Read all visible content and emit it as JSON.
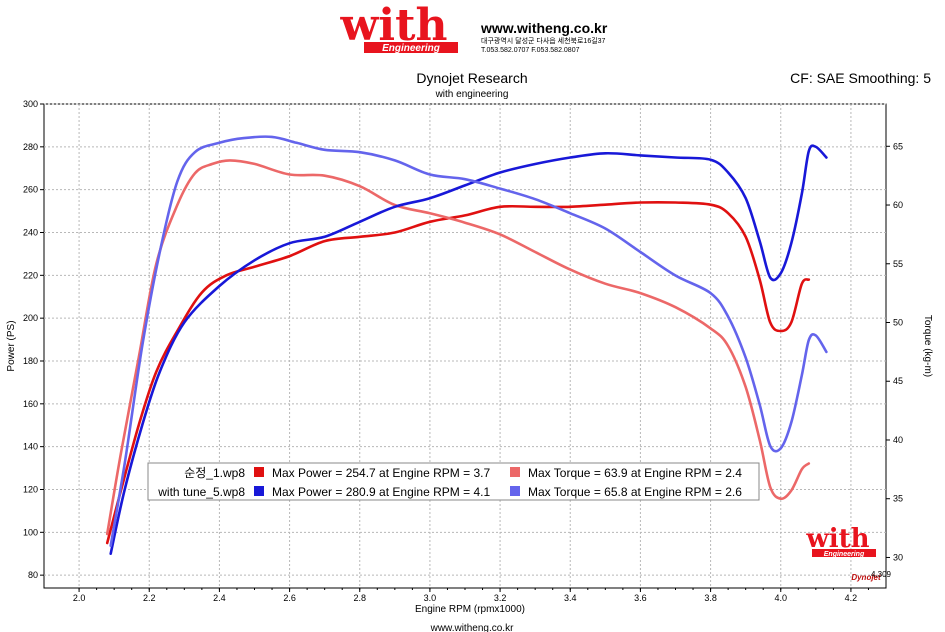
{
  "header": {
    "logo_word": "with",
    "logo_sub": "Engineering",
    "website": "www.witheng.co.kr",
    "address": "대구광역시 달성군 다사읍 세천북로16길37",
    "phone": "T.053.582.0707 F.053.582.0807"
  },
  "footer": {
    "website": "www.witheng.co.kr"
  },
  "corner_logo": {
    "word": "with",
    "sub": "Engineering"
  },
  "dyno_badge": "Dynojet",
  "colors": {
    "stock_power": "#e01010",
    "stock_torque": "#ec6868",
    "tune_power": "#1818d8",
    "tune_torque": "#6464ec",
    "logo_red": "#e8141e"
  },
  "chart_data": {
    "type": "line",
    "title": "Dynojet Research",
    "subtitle": "with engineering",
    "corner_text": "CF: SAE Smoothing: 5",
    "xlabel": "Engine RPM (rpmx1000)",
    "ylabel": "Power (PS)",
    "y2label": "Torque (kg-m)",
    "xlim": [
      1.9,
      4.3
    ],
    "ylim": [
      74,
      300
    ],
    "y2lim": [
      27.4,
      68.6
    ],
    "x_ticks": [
      "2.0",
      "2.2",
      "2.4",
      "2.6",
      "2.8",
      "3.0",
      "3.2",
      "3.4",
      "3.6",
      "3.8",
      "4.0",
      "4.2"
    ],
    "y_ticks": [
      "80",
      "100",
      "120",
      "140",
      "160",
      "180",
      "200",
      "220",
      "240",
      "260",
      "280",
      "300"
    ],
    "y2_ticks": [
      "30",
      "35",
      "40",
      "45",
      "50",
      "55",
      "60",
      "65"
    ],
    "x_max_label": "4.309",
    "grid": true,
    "legend_position": "bottom-center",
    "legend": [
      {
        "file": "순정_1.wp8",
        "power_text": "Max Power = 254.7 at Engine RPM = 3.7",
        "torque_text": "Max Torque = 63.9 at Engine RPM = 2.4"
      },
      {
        "file": "with tune_5.wp8",
        "power_text": "Max Power = 280.9 at Engine RPM = 4.1",
        "torque_text": "Max Torque = 65.8 at Engine RPM = 2.6"
      }
    ],
    "series": [
      {
        "axis": "left",
        "color": "#e01010",
        "points": [
          [
            2.08,
            95
          ],
          [
            2.12,
            120
          ],
          [
            2.17,
            150
          ],
          [
            2.22,
            175
          ],
          [
            2.28,
            194
          ],
          [
            2.35,
            212
          ],
          [
            2.42,
            220
          ],
          [
            2.5,
            224
          ],
          [
            2.6,
            229
          ],
          [
            2.7,
            236
          ],
          [
            2.8,
            238
          ],
          [
            2.9,
            240
          ],
          [
            3.0,
            245
          ],
          [
            3.1,
            248
          ],
          [
            3.2,
            252
          ],
          [
            3.3,
            252
          ],
          [
            3.4,
            252
          ],
          [
            3.5,
            253
          ],
          [
            3.6,
            254
          ],
          [
            3.7,
            254
          ],
          [
            3.8,
            253
          ],
          [
            3.85,
            249
          ],
          [
            3.9,
            238
          ],
          [
            3.94,
            218
          ],
          [
            3.97,
            198
          ],
          [
            4.0,
            194
          ],
          [
            4.03,
            198
          ],
          [
            4.06,
            216
          ],
          [
            4.08,
            218
          ]
        ]
      },
      {
        "axis": "right",
        "color": "#ec6868",
        "points": [
          [
            2.08,
            32
          ],
          [
            2.12,
            39
          ],
          [
            2.17,
            47
          ],
          [
            2.22,
            55
          ],
          [
            2.28,
            60
          ],
          [
            2.33,
            62.7
          ],
          [
            2.38,
            63.5
          ],
          [
            2.43,
            63.8
          ],
          [
            2.5,
            63.5
          ],
          [
            2.6,
            62.6
          ],
          [
            2.7,
            62.5
          ],
          [
            2.8,
            61.6
          ],
          [
            2.9,
            60
          ],
          [
            3.0,
            59.3
          ],
          [
            3.1,
            58.5
          ],
          [
            3.2,
            57.5
          ],
          [
            3.3,
            56
          ],
          [
            3.4,
            54.5
          ],
          [
            3.5,
            53.3
          ],
          [
            3.6,
            52.5
          ],
          [
            3.7,
            51.3
          ],
          [
            3.8,
            49.5
          ],
          [
            3.85,
            48
          ],
          [
            3.9,
            44.5
          ],
          [
            3.94,
            40
          ],
          [
            3.97,
            36
          ],
          [
            4.0,
            35
          ],
          [
            4.03,
            35.7
          ],
          [
            4.06,
            37.5
          ],
          [
            4.08,
            38
          ]
        ]
      },
      {
        "axis": "left",
        "color": "#1818d8",
        "points": [
          [
            2.09,
            90
          ],
          [
            2.13,
            120
          ],
          [
            2.18,
            150
          ],
          [
            2.23,
            175
          ],
          [
            2.3,
            198
          ],
          [
            2.4,
            215
          ],
          [
            2.5,
            227
          ],
          [
            2.6,
            235
          ],
          [
            2.7,
            238
          ],
          [
            2.8,
            245
          ],
          [
            2.9,
            252
          ],
          [
            3.0,
            256
          ],
          [
            3.1,
            262
          ],
          [
            3.2,
            268
          ],
          [
            3.3,
            272
          ],
          [
            3.4,
            275
          ],
          [
            3.5,
            277
          ],
          [
            3.6,
            276
          ],
          [
            3.7,
            275
          ],
          [
            3.8,
            274
          ],
          [
            3.85,
            268
          ],
          [
            3.9,
            256
          ],
          [
            3.94,
            236
          ],
          [
            3.97,
            219
          ],
          [
            4.0,
            221
          ],
          [
            4.03,
            235
          ],
          [
            4.06,
            258
          ],
          [
            4.08,
            278
          ],
          [
            4.1,
            280
          ],
          [
            4.13,
            275
          ]
        ]
      },
      {
        "axis": "right",
        "color": "#6464ec",
        "points": [
          [
            2.09,
            31
          ],
          [
            2.13,
            38
          ],
          [
            2.18,
            48
          ],
          [
            2.23,
            56
          ],
          [
            2.28,
            62
          ],
          [
            2.33,
            64.5
          ],
          [
            2.4,
            65.3
          ],
          [
            2.47,
            65.7
          ],
          [
            2.55,
            65.8
          ],
          [
            2.62,
            65.3
          ],
          [
            2.7,
            64.7
          ],
          [
            2.8,
            64.5
          ],
          [
            2.9,
            63.8
          ],
          [
            3.0,
            62.6
          ],
          [
            3.1,
            62.2
          ],
          [
            3.2,
            61.4
          ],
          [
            3.3,
            60.5
          ],
          [
            3.4,
            59.3
          ],
          [
            3.5,
            58
          ],
          [
            3.6,
            56
          ],
          [
            3.7,
            54
          ],
          [
            3.8,
            52.5
          ],
          [
            3.85,
            50.5
          ],
          [
            3.9,
            47
          ],
          [
            3.94,
            43
          ],
          [
            3.97,
            39.5
          ],
          [
            4.0,
            39.3
          ],
          [
            4.03,
            41.5
          ],
          [
            4.06,
            45.5
          ],
          [
            4.08,
            48.5
          ],
          [
            4.1,
            48.9
          ],
          [
            4.13,
            47.5
          ]
        ]
      }
    ]
  }
}
